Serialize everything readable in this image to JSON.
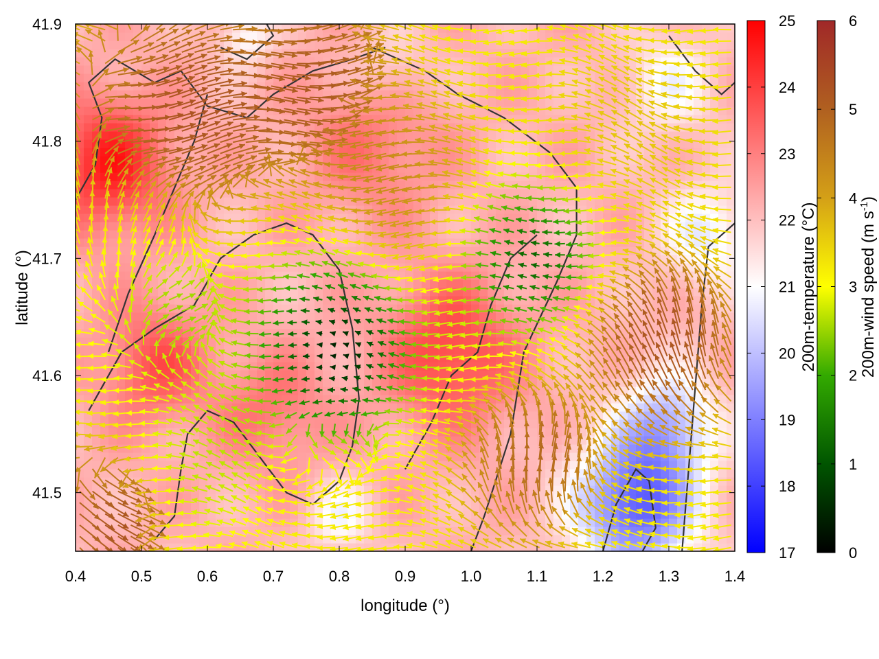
{
  "chart_data": {
    "type": "heatmap",
    "subtype": "vector-field-over-temperature-map",
    "xlabel": "longitude (°)",
    "ylabel": "latitude (°)",
    "xlim": [
      0.4,
      1.4
    ],
    "ylim": [
      41.45,
      41.9
    ],
    "x_ticks": [
      "0.4",
      "0.5",
      "0.6",
      "0.7",
      "0.8",
      "0.9",
      "1.0",
      "1.1",
      "1.2",
      "1.3",
      "1.4"
    ],
    "x_tick_values": [
      0.4,
      0.5,
      0.6,
      0.7,
      0.8,
      0.9,
      1.0,
      1.1,
      1.2,
      1.3,
      1.4
    ],
    "y_ticks": [
      "41.5",
      "41.6",
      "41.7",
      "41.8",
      "41.9"
    ],
    "y_tick_values": [
      41.5,
      41.6,
      41.7,
      41.8,
      41.9
    ],
    "grid": false,
    "temperature_colorbar": {
      "label": "200m-temperature (°C)",
      "range": [
        17,
        25
      ],
      "ticks": [
        "17",
        "18",
        "19",
        "20",
        "21",
        "22",
        "23",
        "24",
        "25"
      ],
      "tick_values": [
        17,
        18,
        19,
        20,
        21,
        22,
        23,
        24,
        25
      ],
      "colors": [
        "#0000ff",
        "#ffffff",
        "#ff0000"
      ]
    },
    "wind_colorbar": {
      "label_main": "200m-wind speed (m s",
      "label_sup": "-1",
      "label_end": ")",
      "range": [
        0,
        6
      ],
      "ticks": [
        "0",
        "1",
        "2",
        "3",
        "4",
        "5",
        "6"
      ],
      "tick_values": [
        0,
        1,
        2,
        3,
        4,
        5,
        6
      ],
      "colors": [
        "#000000",
        "#005500",
        "#33aa00",
        "#ffff00",
        "#d4a017",
        "#b06020",
        "#a02828"
      ]
    },
    "temperature_field": {
      "base": 22.2,
      "features": [
        {
          "lon": 0.45,
          "lat": 41.78,
          "dT": 2.3,
          "r": 0.09
        },
        {
          "lon": 0.85,
          "lat": 41.8,
          "dT": 1.0,
          "r": 0.1
        },
        {
          "lon": 0.97,
          "lat": 41.62,
          "dT": 1.8,
          "r": 0.1
        },
        {
          "lon": 0.52,
          "lat": 41.61,
          "dT": 1.5,
          "r": 0.08
        },
        {
          "lon": 0.7,
          "lat": 41.57,
          "dT": 1.0,
          "r": 0.08
        },
        {
          "lon": 1.25,
          "lat": 41.49,
          "dT": -3.8,
          "r": 0.09
        },
        {
          "lon": 1.3,
          "lat": 41.56,
          "dT": -2.2,
          "r": 0.07
        },
        {
          "lon": 1.36,
          "lat": 41.72,
          "dT": -1.5,
          "r": 0.07
        },
        {
          "lon": 1.3,
          "lat": 41.85,
          "dT": -1.2,
          "r": 0.07
        },
        {
          "lon": 0.66,
          "lat": 41.89,
          "dT": -1.2,
          "r": 0.04
        },
        {
          "lon": 0.8,
          "lat": 41.48,
          "dT": -1.2,
          "r": 0.05
        },
        {
          "lon": 0.88,
          "lat": 41.86,
          "dT": -0.8,
          "r": 0.06
        }
      ]
    },
    "wind_field": {
      "vortices": [
        {
          "lon": 0.8,
          "lat": 41.62,
          "u": -0.5,
          "v": 0.1,
          "speed": 0.4,
          "r": 0.12
        },
        {
          "lon": 1.1,
          "lat": 41.7,
          "u": -0.6,
          "v": 0.0,
          "speed": 1.2,
          "r": 0.1
        },
        {
          "lon": 0.55,
          "lat": 41.65,
          "u": 0.3,
          "v": 0.2,
          "speed": 2.5,
          "r": 0.1
        }
      ],
      "regions": [
        {
          "lon": 0.55,
          "lat": 41.82,
          "u": 1.0,
          "v": 0.05,
          "speed": 6.0,
          "r": 0.12
        },
        {
          "lon": 0.75,
          "lat": 41.85,
          "u": 1.0,
          "v": 0.0,
          "speed": 5.8,
          "r": 0.1
        },
        {
          "lon": 0.9,
          "lat": 41.76,
          "u": -1.0,
          "v": 0.0,
          "speed": 4.8,
          "r": 0.1
        },
        {
          "lon": 1.25,
          "lat": 41.8,
          "u": -0.8,
          "v": 0.3,
          "speed": 3.8,
          "r": 0.1
        },
        {
          "lon": 1.3,
          "lat": 41.62,
          "u": 0.1,
          "v": 1.0,
          "speed": 6.0,
          "r": 0.09
        },
        {
          "lon": 1.1,
          "lat": 41.52,
          "u": 0.5,
          "v": 0.8,
          "speed": 5.5,
          "r": 0.08
        },
        {
          "lon": 0.45,
          "lat": 41.48,
          "u": 1.0,
          "v": -0.3,
          "speed": 6.0,
          "r": 0.07
        },
        {
          "lon": 0.8,
          "lat": 41.57,
          "u": 1.0,
          "v": -0.3,
          "speed": 4.2,
          "r": 0.08
        },
        {
          "lon": 0.45,
          "lat": 41.72,
          "u": 0.2,
          "v": 1.0,
          "speed": 3.2,
          "r": 0.08
        },
        {
          "lon": 0.6,
          "lat": 41.52,
          "u": -0.8,
          "v": 0.3,
          "speed": 2.5,
          "r": 0.08
        }
      ]
    },
    "contours": [
      [
        [
          0.4,
          41.75
        ],
        [
          0.43,
          41.78
        ],
        [
          0.44,
          41.82
        ],
        [
          0.42,
          41.85
        ],
        [
          0.46,
          41.87
        ],
        [
          0.52,
          41.85
        ],
        [
          0.56,
          41.86
        ],
        [
          0.6,
          41.83
        ],
        [
          0.66,
          41.82
        ],
        [
          0.7,
          41.84
        ],
        [
          0.76,
          41.86
        ],
        [
          0.82,
          41.87
        ],
        [
          0.87,
          41.88
        ]
      ],
      [
        [
          0.85,
          41.88
        ],
        [
          0.93,
          41.86
        ],
        [
          0.98,
          41.84
        ],
        [
          1.05,
          41.82
        ],
        [
          1.12,
          41.79
        ],
        [
          1.16,
          41.76
        ],
        [
          1.16,
          41.72
        ],
        [
          1.13,
          41.68
        ],
        [
          1.08,
          41.62
        ],
        [
          1.06,
          41.55
        ],
        [
          1.02,
          41.48
        ],
        [
          1.0,
          41.45
        ]
      ],
      [
        [
          0.45,
          41.62
        ],
        [
          0.48,
          41.67
        ],
        [
          0.52,
          41.72
        ],
        [
          0.55,
          41.76
        ],
        [
          0.58,
          41.8
        ],
        [
          0.6,
          41.84
        ]
      ],
      [
        [
          0.42,
          41.57
        ],
        [
          0.47,
          41.62
        ],
        [
          0.52,
          41.64
        ],
        [
          0.58,
          41.66
        ],
        [
          0.62,
          41.7
        ],
        [
          0.67,
          41.72
        ],
        [
          0.72,
          41.73
        ],
        [
          0.76,
          41.72
        ],
        [
          0.8,
          41.69
        ],
        [
          0.82,
          41.64
        ],
        [
          0.83,
          41.58
        ],
        [
          0.82,
          41.54
        ],
        [
          0.8,
          41.51
        ],
        [
          0.76,
          41.49
        ],
        [
          0.72,
          41.5
        ],
        [
          0.68,
          41.53
        ],
        [
          0.64,
          41.56
        ],
        [
          0.6,
          41.57
        ],
        [
          0.57,
          41.55
        ],
        [
          0.56,
          41.52
        ],
        [
          0.55,
          41.48
        ],
        [
          0.52,
          41.46
        ]
      ],
      [
        [
          0.9,
          41.52
        ],
        [
          0.94,
          41.56
        ],
        [
          0.97,
          41.6
        ],
        [
          1.01,
          41.62
        ],
        [
          1.03,
          41.66
        ],
        [
          1.06,
          41.7
        ],
        [
          1.1,
          41.72
        ]
      ],
      [
        [
          1.2,
          41.45
        ],
        [
          1.22,
          41.49
        ],
        [
          1.25,
          41.52
        ],
        [
          1.27,
          41.51
        ],
        [
          1.28,
          41.47
        ],
        [
          1.26,
          41.45
        ]
      ],
      [
        [
          1.32,
          41.45
        ],
        [
          1.33,
          41.52
        ],
        [
          1.34,
          41.59
        ],
        [
          1.35,
          41.66
        ],
        [
          1.36,
          41.71
        ],
        [
          1.4,
          41.73
        ]
      ],
      [
        [
          0.62,
          41.88
        ],
        [
          0.66,
          41.87
        ],
        [
          0.7,
          41.89
        ],
        [
          0.69,
          41.9
        ]
      ],
      [
        [
          1.3,
          41.89
        ],
        [
          1.34,
          41.86
        ],
        [
          1.38,
          41.84
        ],
        [
          1.4,
          41.85
        ]
      ]
    ]
  }
}
